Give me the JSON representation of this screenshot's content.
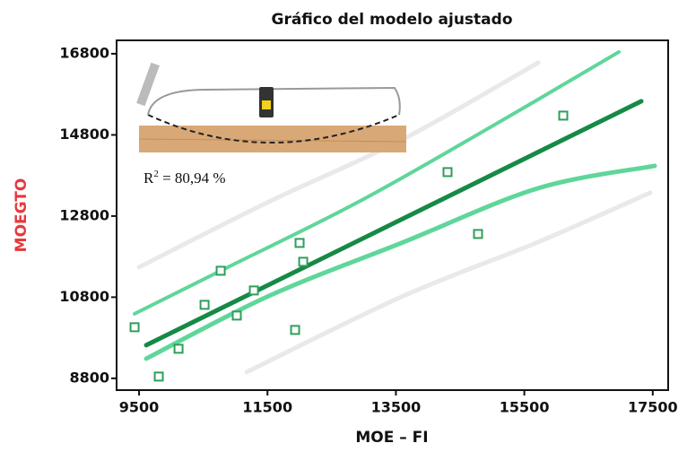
{
  "chart_data": {
    "type": "scatter",
    "title": "Gráfico del modelo ajustado",
    "x_label": "MOE – FI",
    "y_label": "MOEGTO",
    "annotation": {
      "base": "R",
      "sup": "2",
      "text": " = 80,94 %"
    },
    "xlim": [
      9150,
      17740
    ],
    "ylim": [
      8510,
      17130
    ],
    "xticks": [
      9500,
      11500,
      13500,
      15500,
      17500
    ],
    "yticks": [
      8800,
      10800,
      12800,
      14800,
      16800
    ],
    "points": {
      "color": "#2e9e5b",
      "x": [
        9430,
        9807,
        10115,
        10520,
        10771,
        11022,
        11288,
        11930,
        12000,
        12056,
        14304,
        14779,
        16106
      ],
      "values": [
        10060,
        8844,
        9529,
        10612,
        11452,
        10347,
        10966,
        9993,
        12137,
        11673,
        13883,
        12358,
        15275
      ]
    },
    "lines": [
      {
        "color": "#e9e9e9",
        "x": [
          9500,
          11525,
          13620,
          15715
        ],
        "values": [
          11540,
          13154,
          14701,
          16579
        ]
      },
      {
        "color": "#e9e9e9",
        "x": [
          11176,
          13620,
          15715,
          17461
        ],
        "values": [
          8955,
          10833,
          12159,
          13375
        ]
      },
      {
        "color": "#5fd69a",
        "x": [
          9430,
          10827,
          12922,
          15017,
          16972
        ],
        "values": [
          10391,
          11495,
          13154,
          15032,
          16844
        ]
      },
      {
        "color": "#5fd69a",
        "x": [
          9612,
          11525,
          13620,
          15715,
          17531
        ],
        "values": [
          9286,
          10833,
          12159,
          13485,
          14038
        ]
      },
      {
        "color": "#168a45",
        "x": [
          9612,
          17321
        ],
        "values": [
          9618,
          15629
        ]
      }
    ]
  }
}
